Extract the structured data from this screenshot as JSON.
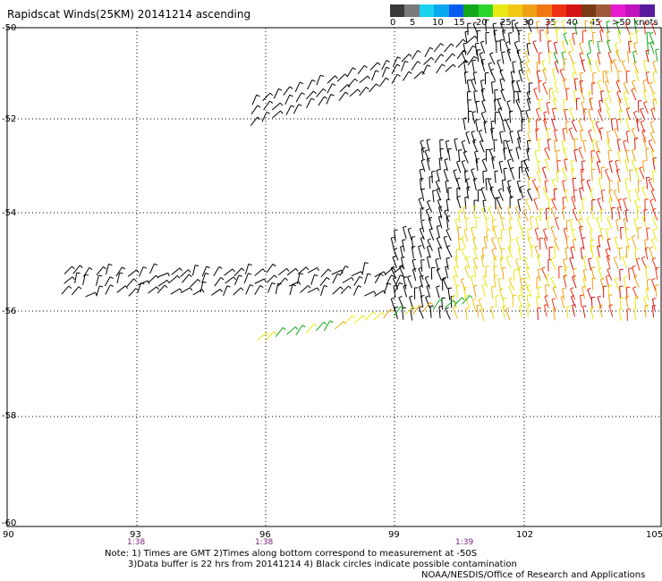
{
  "title": "Rapidscat Winds(25KM) 20141214 ascending",
  "legend": {
    "colors": [
      "#3a3a3a",
      "#7a7a7a",
      "#1ad2f0",
      "#0aa8f0",
      "#0a5cf0",
      "#12a81a",
      "#2bd42b",
      "#e8e814",
      "#f0c814",
      "#f0a014",
      "#f07814",
      "#f03214",
      "#d41414",
      "#7a3a14",
      "#a05a3a",
      "#e81ad2",
      "#c014c0",
      "#5a1aa0"
    ],
    "labels": [
      "0",
      "5",
      "10",
      "15",
      "20",
      "25",
      "30",
      "35",
      "40",
      "45",
      ">50 knots"
    ]
  },
  "lat_labels": [
    "-50",
    "-52",
    "-54",
    "-56",
    "-58",
    "-60"
  ],
  "lon_labels": [
    "90",
    "93",
    "96",
    "99",
    "102",
    "105"
  ],
  "time_labels": [
    "1:38",
    "1:38",
    "1:39"
  ],
  "notes": {
    "line1": "Note: 1) Times are GMT 2)Times along bottom correspond to measurement at -50S",
    "line2": "3)Data buffer is 22 hrs from 20141214 4) Black circles indicate possible contamination",
    "line3": "NOAA/NESDIS/Office of Research and Applications"
  }
}
